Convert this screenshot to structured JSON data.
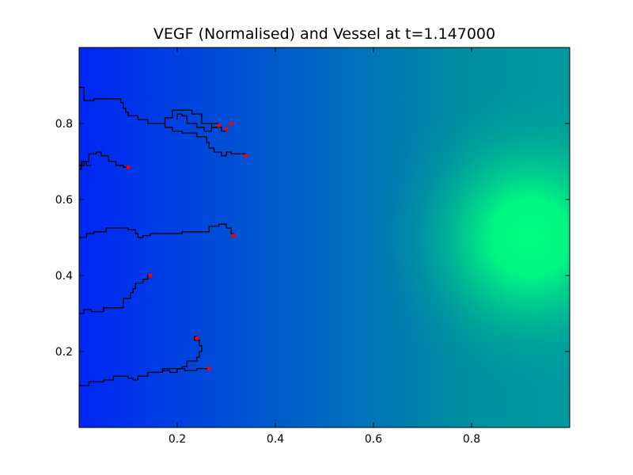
{
  "chart_data": {
    "type": "heatmap",
    "title": "VEGF (Normalised) and Vessel at t=1.147000",
    "xlabel": "",
    "ylabel": "",
    "xlim": [
      0,
      1
    ],
    "ylim": [
      0,
      1
    ],
    "x_ticks": [
      0.2,
      0.4,
      0.6,
      0.8
    ],
    "x_tick_labels": [
      "0.2",
      "0.4",
      "0.6",
      "0.8"
    ],
    "y_ticks": [
      0.2,
      0.4,
      0.6,
      0.8
    ],
    "y_tick_labels": [
      "0.2",
      "0.4",
      "0.6",
      "0.8"
    ],
    "grid": false,
    "field": {
      "colormap": "winter",
      "colors": {
        "low": "#0026f5",
        "mid": "#00909f",
        "high": "#00ff80"
      },
      "peak": [
        0.92,
        0.5
      ],
      "profile": [
        {
          "x": 0.0,
          "value": 0.12
        },
        {
          "x": 0.3,
          "value": 0.3
        },
        {
          "x": 0.5,
          "value": 0.48
        },
        {
          "x": 0.7,
          "value": 0.62
        },
        {
          "x": 0.85,
          "value": 0.9
        },
        {
          "x": 0.92,
          "value": 1.0
        }
      ]
    },
    "vessel_color": "#000000",
    "tip_color": "#ff0000",
    "vessels": [
      {
        "path": [
          [
            0.0,
            0.895
          ],
          [
            0.01,
            0.895
          ],
          [
            0.01,
            0.86
          ],
          [
            0.03,
            0.86
          ],
          [
            0.03,
            0.865
          ],
          [
            0.085,
            0.865
          ],
          [
            0.085,
            0.855
          ],
          [
            0.09,
            0.855
          ],
          [
            0.09,
            0.84
          ],
          [
            0.095,
            0.84
          ],
          [
            0.095,
            0.83
          ],
          [
            0.1,
            0.83
          ],
          [
            0.1,
            0.82
          ],
          [
            0.12,
            0.82
          ],
          [
            0.12,
            0.81
          ],
          [
            0.14,
            0.81
          ],
          [
            0.14,
            0.8
          ],
          [
            0.165,
            0.8
          ],
          [
            0.165,
            0.8
          ],
          [
            0.175,
            0.8
          ],
          [
            0.175,
            0.815
          ],
          [
            0.19,
            0.815
          ],
          [
            0.19,
            0.835
          ],
          [
            0.23,
            0.835
          ],
          [
            0.23,
            0.825
          ],
          [
            0.25,
            0.825
          ],
          [
            0.25,
            0.8
          ],
          [
            0.27,
            0.8
          ],
          [
            0.27,
            0.79
          ],
          [
            0.29,
            0.79
          ],
          [
            0.29,
            0.78
          ],
          [
            0.3,
            0.78
          ],
          [
            0.3,
            0.79
          ]
        ],
        "tips": [
          [
            0.3,
            0.785
          ],
          [
            0.31,
            0.8
          ]
        ]
      },
      {
        "path": [
          [
            0.175,
            0.8
          ],
          [
            0.175,
            0.79
          ],
          [
            0.19,
            0.79
          ],
          [
            0.19,
            0.78
          ],
          [
            0.21,
            0.78
          ],
          [
            0.21,
            0.775
          ],
          [
            0.24,
            0.775
          ],
          [
            0.24,
            0.765
          ],
          [
            0.26,
            0.765
          ],
          [
            0.26,
            0.75
          ],
          [
            0.265,
            0.75
          ],
          [
            0.265,
            0.735
          ],
          [
            0.275,
            0.735
          ],
          [
            0.275,
            0.725
          ],
          [
            0.29,
            0.725
          ],
          [
            0.29,
            0.715
          ],
          [
            0.3,
            0.715
          ],
          [
            0.3,
            0.725
          ],
          [
            0.31,
            0.725
          ],
          [
            0.31,
            0.72
          ],
          [
            0.34,
            0.72
          ],
          [
            0.34,
            0.715
          ]
        ],
        "tips": [
          [
            0.34,
            0.715
          ]
        ]
      },
      {
        "path": [
          [
            0.2,
            0.81
          ],
          [
            0.2,
            0.825
          ],
          [
            0.21,
            0.825
          ],
          [
            0.21,
            0.82
          ],
          [
            0.22,
            0.82
          ],
          [
            0.22,
            0.8
          ],
          [
            0.24,
            0.8
          ],
          [
            0.24,
            0.79
          ],
          [
            0.255,
            0.79
          ],
          [
            0.255,
            0.78
          ],
          [
            0.27,
            0.78
          ],
          [
            0.27,
            0.8
          ],
          [
            0.285,
            0.8
          ]
        ],
        "tips": [
          [
            0.285,
            0.795
          ]
        ]
      },
      {
        "path": [
          [
            0.0,
            0.69
          ],
          [
            0.01,
            0.69
          ],
          [
            0.01,
            0.7
          ],
          [
            0.02,
            0.7
          ],
          [
            0.02,
            0.72
          ],
          [
            0.035,
            0.72
          ],
          [
            0.035,
            0.725
          ],
          [
            0.045,
            0.725
          ],
          [
            0.045,
            0.715
          ],
          [
            0.06,
            0.715
          ],
          [
            0.06,
            0.7
          ],
          [
            0.075,
            0.7
          ],
          [
            0.075,
            0.69
          ],
          [
            0.09,
            0.69
          ],
          [
            0.09,
            0.685
          ],
          [
            0.1,
            0.685
          ]
        ],
        "tips": [
          [
            0.1,
            0.685
          ]
        ]
      },
      {
        "path": [
          [
            0.0,
            0.68
          ],
          [
            0.005,
            0.68
          ],
          [
            0.005,
            0.7
          ],
          [
            0.015,
            0.7
          ],
          [
            0.015,
            0.69
          ],
          [
            0.025,
            0.69
          ]
        ],
        "tips": []
      },
      {
        "path": [
          [
            0.0,
            0.5
          ],
          [
            0.015,
            0.5
          ],
          [
            0.015,
            0.51
          ],
          [
            0.03,
            0.51
          ],
          [
            0.03,
            0.515
          ],
          [
            0.055,
            0.515
          ],
          [
            0.055,
            0.525
          ],
          [
            0.1,
            0.525
          ],
          [
            0.1,
            0.52
          ],
          [
            0.115,
            0.52
          ],
          [
            0.115,
            0.51
          ],
          [
            0.12,
            0.51
          ],
          [
            0.12,
            0.5
          ],
          [
            0.13,
            0.5
          ],
          [
            0.13,
            0.505
          ],
          [
            0.145,
            0.505
          ],
          [
            0.145,
            0.51
          ],
          [
            0.21,
            0.51
          ],
          [
            0.21,
            0.515
          ],
          [
            0.265,
            0.515
          ],
          [
            0.265,
            0.53
          ],
          [
            0.285,
            0.53
          ],
          [
            0.285,
            0.535
          ],
          [
            0.3,
            0.535
          ],
          [
            0.3,
            0.525
          ],
          [
            0.31,
            0.525
          ],
          [
            0.31,
            0.51
          ],
          [
            0.315,
            0.51
          ],
          [
            0.315,
            0.505
          ]
        ],
        "tips": [
          [
            0.315,
            0.505
          ]
        ]
      },
      {
        "path": [
          [
            0.0,
            0.3
          ],
          [
            0.01,
            0.3
          ],
          [
            0.01,
            0.31
          ],
          [
            0.025,
            0.31
          ],
          [
            0.025,
            0.305
          ],
          [
            0.05,
            0.305
          ],
          [
            0.05,
            0.315
          ],
          [
            0.09,
            0.315
          ],
          [
            0.09,
            0.34
          ],
          [
            0.105,
            0.34
          ],
          [
            0.105,
            0.355
          ],
          [
            0.11,
            0.355
          ],
          [
            0.11,
            0.365
          ],
          [
            0.115,
            0.365
          ],
          [
            0.115,
            0.38
          ],
          [
            0.13,
            0.38
          ],
          [
            0.13,
            0.39
          ],
          [
            0.14,
            0.39
          ],
          [
            0.14,
            0.4
          ],
          [
            0.145,
            0.4
          ]
        ],
        "tips": [
          [
            0.145,
            0.4
          ]
        ]
      },
      {
        "path": [
          [
            0.0,
            0.11
          ],
          [
            0.02,
            0.11
          ],
          [
            0.02,
            0.12
          ],
          [
            0.05,
            0.12
          ],
          [
            0.05,
            0.125
          ],
          [
            0.07,
            0.125
          ],
          [
            0.07,
            0.135
          ],
          [
            0.1,
            0.135
          ],
          [
            0.1,
            0.13
          ],
          [
            0.11,
            0.13
          ],
          [
            0.11,
            0.125
          ],
          [
            0.12,
            0.125
          ],
          [
            0.12,
            0.135
          ],
          [
            0.14,
            0.135
          ],
          [
            0.14,
            0.145
          ],
          [
            0.17,
            0.145
          ],
          [
            0.17,
            0.155
          ],
          [
            0.21,
            0.155
          ],
          [
            0.21,
            0.16
          ],
          [
            0.22,
            0.16
          ],
          [
            0.22,
            0.175
          ],
          [
            0.24,
            0.175
          ],
          [
            0.24,
            0.185
          ],
          [
            0.245,
            0.185
          ],
          [
            0.245,
            0.2
          ],
          [
            0.25,
            0.2
          ],
          [
            0.25,
            0.215
          ],
          [
            0.245,
            0.215
          ],
          [
            0.245,
            0.23
          ],
          [
            0.235,
            0.23
          ],
          [
            0.235,
            0.24
          ],
          [
            0.24,
            0.24
          ],
          [
            0.24,
            0.235
          ]
        ],
        "tips": [
          [
            0.24,
            0.235
          ]
        ]
      },
      {
        "path": [
          [
            0.17,
            0.155
          ],
          [
            0.17,
            0.15
          ],
          [
            0.185,
            0.15
          ],
          [
            0.185,
            0.145
          ],
          [
            0.2,
            0.145
          ],
          [
            0.2,
            0.155
          ],
          [
            0.215,
            0.155
          ],
          [
            0.215,
            0.15
          ],
          [
            0.24,
            0.15
          ],
          [
            0.24,
            0.155
          ],
          [
            0.265,
            0.155
          ]
        ],
        "tips": [
          [
            0.265,
            0.155
          ]
        ]
      }
    ]
  }
}
